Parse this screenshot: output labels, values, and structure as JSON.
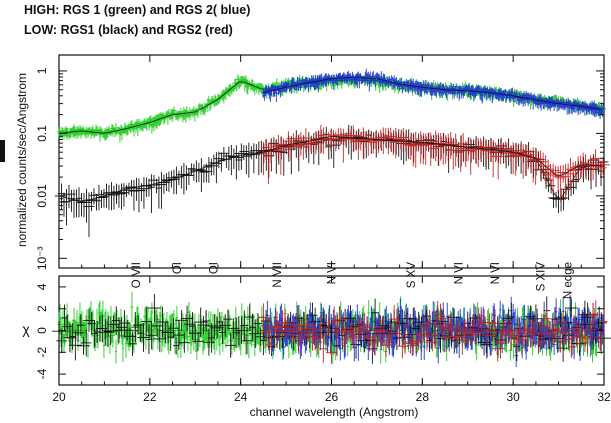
{
  "header": {
    "title_high": "HIGH: RGS 1 (green) and RGS 2( blue)",
    "title_low": "LOW: RGS1 (black) and RGS2 (red)"
  },
  "colors": {
    "rgs1_high": "#22cc22",
    "rgs2_high": "#2233dd",
    "rgs1_low": "#111111",
    "rgs2_low": "#cc2222"
  },
  "chart_data": [
    {
      "type": "scatter",
      "panel": "spectrum",
      "title": "",
      "xlabel": "",
      "ylabel": "normalized counts/sec/Angstrom",
      "xlim": [
        20,
        32
      ],
      "ylim": [
        0.0007,
        1.8
      ],
      "y_scale": "log",
      "yticks": [
        {
          "v": 1,
          "label": "1"
        },
        {
          "v": 0.1,
          "label": "0.1"
        },
        {
          "v": 0.01,
          "label": "0.01"
        },
        {
          "v": 0.001,
          "label": "10⁻³"
        }
      ],
      "series": [
        {
          "name": "RGS 1 (green)",
          "color": "#22cc22",
          "x": [
            20.0,
            20.5,
            21.0,
            21.5,
            22.0,
            22.5,
            23.0,
            23.5,
            24.0,
            24.5,
            25.0,
            25.5,
            26.0,
            26.5,
            27.0,
            27.5,
            28.0,
            28.5,
            29.0,
            29.5,
            30.0,
            30.5,
            31.0,
            31.5,
            32.0
          ],
          "y": [
            0.1,
            0.11,
            0.1,
            0.12,
            0.15,
            0.2,
            0.22,
            0.35,
            0.7,
            0.5,
            0.6,
            0.65,
            0.7,
            0.72,
            0.7,
            0.6,
            0.55,
            0.5,
            0.48,
            0.45,
            0.4,
            0.35,
            0.32,
            0.28,
            0.25
          ]
        },
        {
          "name": "RGS 2 (blue)",
          "color": "#2233dd",
          "x": [
            24.5,
            25.0,
            25.5,
            26.0,
            26.5,
            27.0,
            27.5,
            28.0,
            28.5,
            29.0,
            29.5,
            30.0,
            30.5,
            31.0,
            31.5,
            32.0
          ],
          "y": [
            0.45,
            0.55,
            0.65,
            0.75,
            0.8,
            0.75,
            0.62,
            0.55,
            0.5,
            0.48,
            0.45,
            0.4,
            0.34,
            0.3,
            0.27,
            0.24
          ]
        },
        {
          "name": "RGS1 (black)",
          "color": "#111111",
          "x": [
            20.0,
            20.5,
            21.0,
            21.5,
            22.0,
            22.5,
            23.0,
            23.5,
            24.0,
            24.5,
            25.0,
            25.5,
            26.0,
            26.5,
            27.0,
            27.5,
            28.0,
            28.5,
            29.0,
            29.5,
            30.0,
            30.5,
            31.0,
            31.5,
            32.0
          ],
          "y": [
            0.01,
            0.008,
            0.01,
            0.013,
            0.015,
            0.018,
            0.025,
            0.035,
            0.045,
            0.05,
            0.06,
            0.07,
            0.08,
            0.085,
            0.08,
            0.075,
            0.07,
            0.065,
            0.06,
            0.055,
            0.05,
            0.04,
            0.008,
            0.03,
            0.03
          ]
        },
        {
          "name": "RGS2 (red)",
          "color": "#cc2222",
          "x": [
            24.5,
            25.0,
            25.5,
            26.0,
            26.5,
            27.0,
            27.5,
            28.0,
            28.5,
            29.0,
            29.5,
            30.0,
            30.5,
            31.0,
            31.5,
            32.0
          ],
          "y": [
            0.05,
            0.065,
            0.075,
            0.09,
            0.085,
            0.08,
            0.076,
            0.072,
            0.066,
            0.06,
            0.056,
            0.05,
            0.04,
            0.02,
            0.032,
            0.03
          ]
        }
      ],
      "line_labels": [
        {
          "x": 21.7,
          "label": "O VII"
        },
        {
          "x": 22.6,
          "label": "OI"
        },
        {
          "x": 23.4,
          "label": "OI"
        },
        {
          "x": 24.8,
          "label": "N VII"
        },
        {
          "x": 26.0,
          "label": "N VI"
        },
        {
          "x": 27.75,
          "label": "S XV"
        },
        {
          "x": 28.8,
          "label": "N VI"
        },
        {
          "x": 29.6,
          "label": "N VI"
        },
        {
          "x": 30.6,
          "label": "S XIV"
        },
        {
          "x": 31.2,
          "label": "N edge"
        }
      ]
    },
    {
      "type": "scatter",
      "panel": "residuals",
      "title": "",
      "xlabel": "channel wavelength (Angstrom)",
      "ylabel": "χ",
      "xlim": [
        20,
        32
      ],
      "ylim": [
        -5,
        5
      ],
      "xticks": [
        20,
        22,
        24,
        26,
        28,
        30,
        32
      ],
      "yticks": [
        -4,
        -2,
        0,
        2,
        4
      ],
      "series": [
        {
          "name": "RGS 1 (green)",
          "color": "#22cc22",
          "x": [
            20,
            32
          ],
          "y": [
            -3,
            3
          ]
        },
        {
          "name": "RGS 2 (blue)",
          "color": "#2233dd",
          "x": [
            24.5,
            32
          ],
          "y": [
            -3,
            3
          ]
        },
        {
          "name": "RGS1 (black)",
          "color": "#111111",
          "x": [
            20,
            32
          ],
          "y": [
            -3,
            3
          ]
        },
        {
          "name": "RGS2 (red)",
          "color": "#cc2222",
          "x": [
            24.5,
            32
          ],
          "y": [
            -3,
            3
          ]
        }
      ]
    }
  ]
}
